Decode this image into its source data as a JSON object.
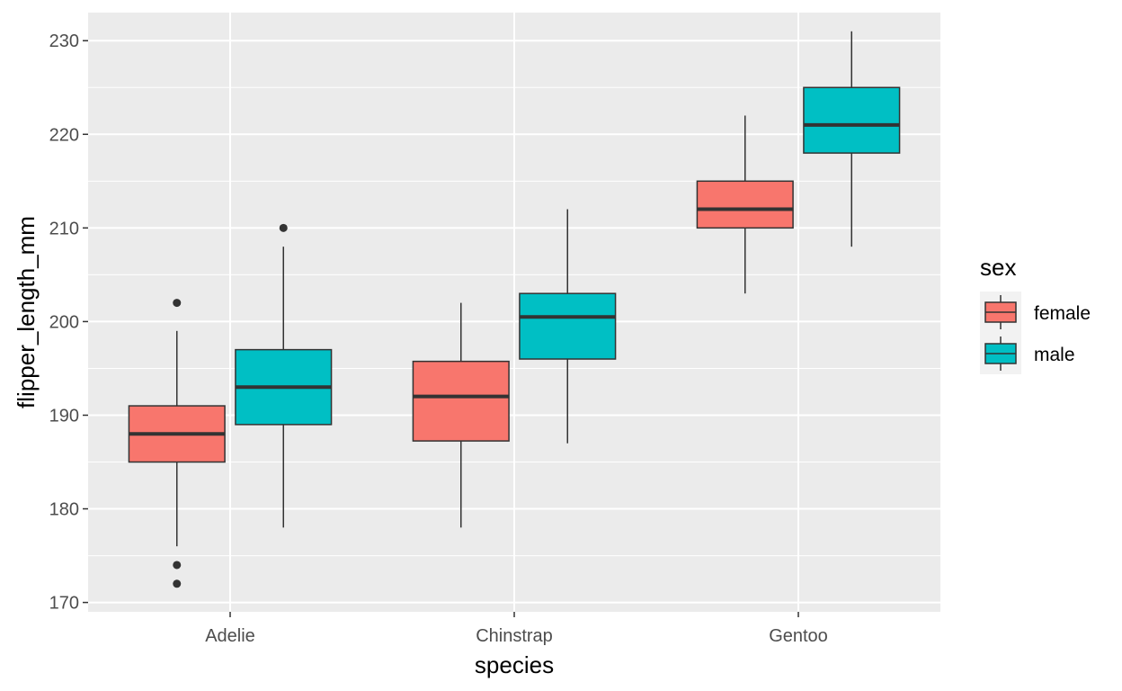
{
  "chart_data": {
    "type": "boxplot",
    "xlabel": "species",
    "ylabel": "flipper_length_mm",
    "categories": [
      "Adelie",
      "Chinstrap",
      "Gentoo"
    ],
    "ylim": [
      169,
      233
    ],
    "yticks": [
      170,
      180,
      190,
      200,
      210,
      220,
      230
    ],
    "grid": true,
    "legend": {
      "title": "sex",
      "placement": "right"
    },
    "series": [
      {
        "name": "female",
        "color": "#F8766D",
        "boxes": [
          {
            "category": "Adelie",
            "whisker_low": 176,
            "q1": 185,
            "median": 188,
            "q3": 191,
            "whisker_high": 199,
            "outliers": [
              202,
              174,
              172
            ]
          },
          {
            "category": "Chinstrap",
            "whisker_low": 178,
            "q1": 187.25,
            "median": 192,
            "q3": 195.75,
            "whisker_high": 202,
            "outliers": []
          },
          {
            "category": "Gentoo",
            "whisker_low": 203,
            "q1": 210,
            "median": 212,
            "q3": 215,
            "whisker_high": 222,
            "outliers": []
          }
        ]
      },
      {
        "name": "male",
        "color": "#00BFC4",
        "boxes": [
          {
            "category": "Adelie",
            "whisker_low": 178,
            "q1": 189,
            "median": 193,
            "q3": 197,
            "whisker_high": 208,
            "outliers": [
              210
            ]
          },
          {
            "category": "Chinstrap",
            "whisker_low": 187,
            "q1": 196,
            "median": 200.5,
            "q3": 203,
            "whisker_high": 212,
            "outliers": []
          },
          {
            "category": "Gentoo",
            "whisker_low": 208,
            "q1": 218,
            "median": 221,
            "q3": 225,
            "whisker_high": 231,
            "outliers": []
          }
        ]
      }
    ]
  }
}
